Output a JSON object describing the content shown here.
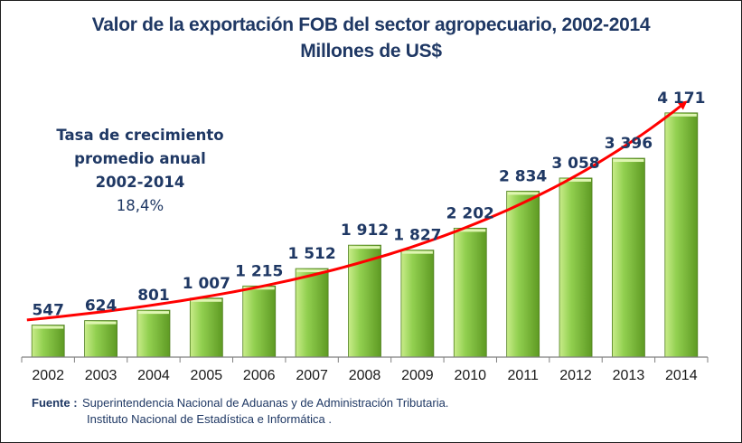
{
  "colors": {
    "title": "#1f3864",
    "bar_light": "#c9ec8a",
    "bar_mid": "#92d050",
    "bar_dark": "#5e9a23",
    "trend": "#ff0000",
    "axis": "#7f7f7f"
  },
  "chart_data": {
    "type": "bar",
    "title": "Valor de la exportación FOB del sector agropecuario, 2002-2014",
    "subtitle": "Millones de US$",
    "categories": [
      "2002",
      "2003",
      "2004",
      "2005",
      "2006",
      "2007",
      "2008",
      "2009",
      "2010",
      "2011",
      "2012",
      "2013",
      "2014"
    ],
    "values": [
      547,
      624,
      801,
      1007,
      1215,
      1512,
      1912,
      1827,
      2202,
      2834,
      3058,
      3396,
      4171
    ],
    "value_labels": [
      "547",
      "624",
      "801",
      "1 007",
      "1 215",
      "1 512",
      "1 912",
      "1 827",
      "2 202",
      "2 834",
      "3 058",
      "3 396",
      "4 171"
    ],
    "ylim": [
      0,
      4400
    ],
    "grid": false,
    "legend": "none",
    "trend_line": {
      "type": "exponential",
      "color": "#ff0000",
      "arrow": true
    },
    "annotation": {
      "line1": "Tasa de crecimiento",
      "line2": "promedio anual",
      "line3": "2002-2014",
      "line4": "18,4%"
    }
  },
  "source": {
    "label": "Fuente :",
    "line1": "Superintendencia Nacional de Aduanas y de Administración Tributaria.",
    "line2": "Instituto  Nacional de Estadística e Informática ."
  }
}
